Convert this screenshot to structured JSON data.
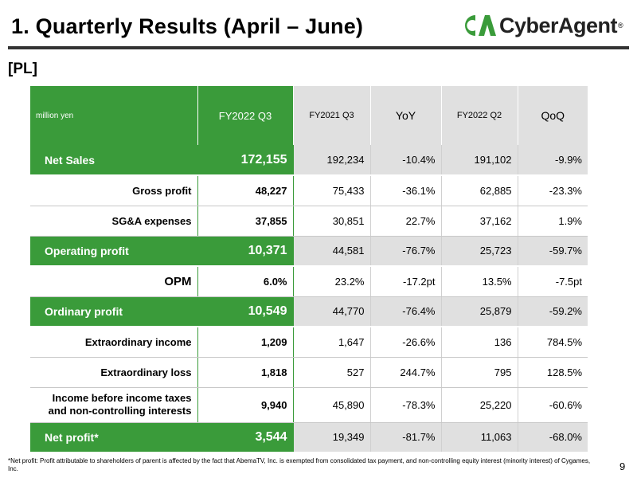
{
  "title": "1.  Quarterly Results (April – June)",
  "logo": {
    "mark_text": "CA",
    "text": "CyberAgent",
    "tm": "®",
    "green": "#3a9b3a"
  },
  "section_label": "[PL]",
  "table": {
    "unit": "million yen",
    "headers": [
      "FY2022 Q3",
      "FY2021 Q3",
      "YoY",
      "FY2022 Q2",
      "QoQ"
    ],
    "rows": [
      {
        "label": "Net Sales",
        "values": [
          "172,155",
          "192,234",
          "-10.4%",
          "191,102",
          "-9.9%"
        ]
      },
      {
        "label": "Gross profit",
        "values": [
          "48,227",
          "75,433",
          "-36.1%",
          "62,885",
          "-23.3%"
        ]
      },
      {
        "label": "SG&A expenses",
        "values": [
          "37,855",
          "30,851",
          "22.7%",
          "37,162",
          "1.9%"
        ]
      },
      {
        "label": "Operating profit",
        "values": [
          "10,371",
          "44,581",
          "-76.7%",
          "25,723",
          "-59.7%"
        ]
      },
      {
        "label": "OPM",
        "values": [
          "6.0%",
          "23.2%",
          "-17.2pt",
          "13.5%",
          "-7.5pt"
        ]
      },
      {
        "label": "Ordinary profit",
        "values": [
          "10,549",
          "44,770",
          "-76.4%",
          "25,879",
          "-59.2%"
        ]
      },
      {
        "label": "Extraordinary income",
        "values": [
          "1,209",
          "1,647",
          "-26.6%",
          "136",
          "784.5%"
        ]
      },
      {
        "label": "Extraordinary loss",
        "values": [
          "1,818",
          "527",
          "244.7%",
          "795",
          "128.5%"
        ]
      },
      {
        "label_line1": "Income before income taxes",
        "label_line2": "and non-controlling interests",
        "values": [
          "9,940",
          "45,890",
          "-78.3%",
          "25,220",
          "-60.6%"
        ]
      },
      {
        "label": "Net profit*",
        "values": [
          "3,544",
          "19,349",
          "-81.7%",
          "11,063",
          "-68.0%"
        ]
      }
    ]
  },
  "footnote": "*Net profit: Profit attributable to shareholders of parent is affected by the fact that AbemaTV, Inc. is exempted from consolidated tax payment, and non-controlling equity interest (minority interest) of Cygames, Inc.",
  "page_number": "9"
}
